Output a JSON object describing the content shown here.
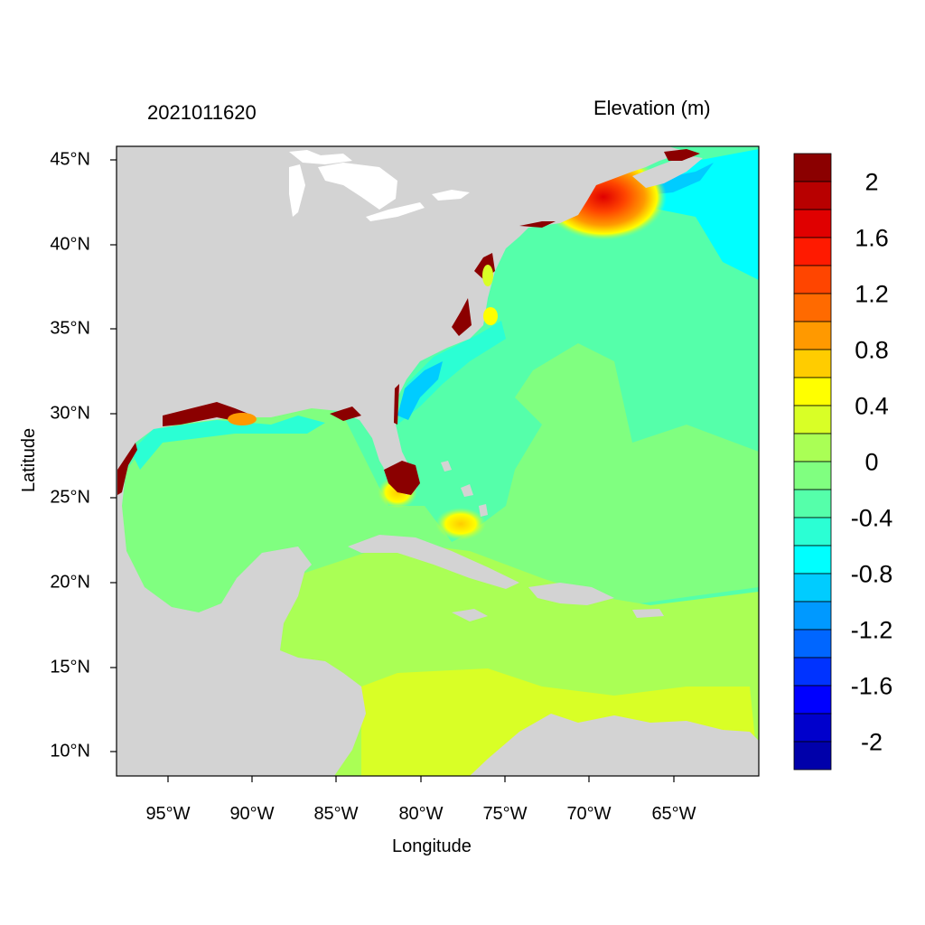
{
  "header": {
    "timestamp": "2021011620",
    "variable": "Elevation (m)"
  },
  "axes": {
    "xlabel": "Longitude",
    "ylabel": "Latitude",
    "x_ticks": [
      "95°W",
      "90°W",
      "85°W",
      "80°W",
      "75°W",
      "70°W",
      "65°W"
    ],
    "y_ticks": [
      "45°N",
      "40°N",
      "35°N",
      "30°N",
      "25°N",
      "20°N",
      "15°N",
      "10°N"
    ]
  },
  "colorbar": {
    "tick_labels": [
      "2",
      "1.6",
      "1.2",
      "0.8",
      "0.4",
      "0",
      "-0.4",
      "-0.8",
      "-1.2",
      "-1.6",
      "-2"
    ],
    "colors_top_to_bottom": [
      "#8b0000",
      "#b80000",
      "#e00000",
      "#ff1a00",
      "#ff4500",
      "#ff6a00",
      "#ff9900",
      "#ffcc00",
      "#ffff00",
      "#d9ff26",
      "#aaff55",
      "#80ff80",
      "#55ffaa",
      "#2bffd4",
      "#00ffff",
      "#00ccff",
      "#0099ff",
      "#0066ff",
      "#0033ff",
      "#0000ff",
      "#0000cc",
      "#0000aa"
    ]
  },
  "map": {
    "land_color": "#d3d3d3",
    "lake_color": "#ffffff"
  }
}
